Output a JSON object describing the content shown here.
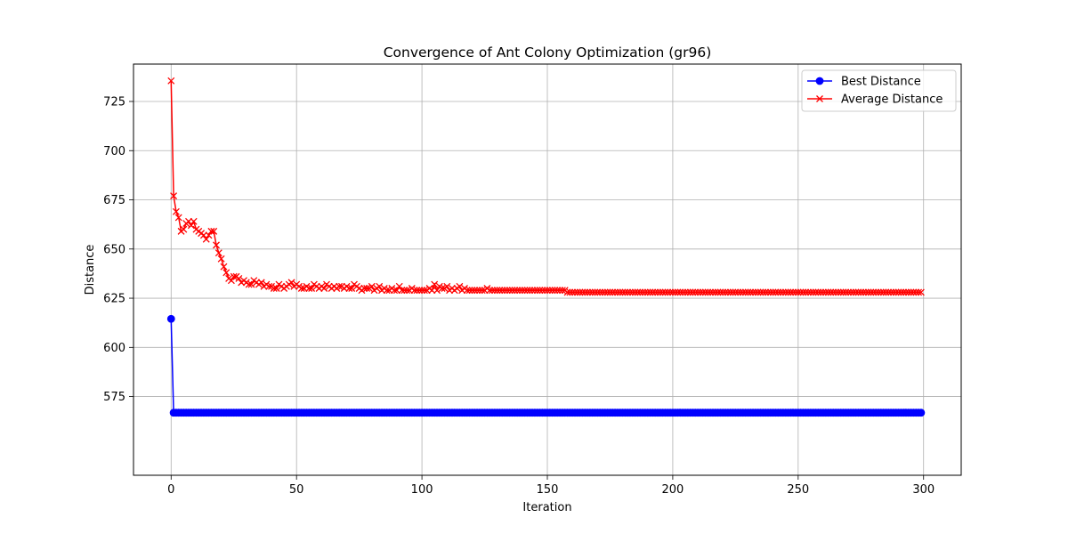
{
  "chart_data": {
    "type": "line",
    "title": "Convergence of Ant Colony Optimization (gr96)",
    "xlabel": "Iteration",
    "ylabel": "Distance",
    "xlim": [
      -15,
      315
    ],
    "ylim": [
      535,
      744
    ],
    "xticks": [
      0,
      50,
      100,
      150,
      200,
      250,
      300
    ],
    "yticks": [
      575,
      600,
      625,
      650,
      675,
      700,
      725
    ],
    "grid": true,
    "legend_position": "top-right",
    "series": [
      {
        "name": "Best Distance",
        "color": "#0000ff",
        "marker": "circle",
        "x_start": 0,
        "x_end": 299,
        "values": [
          614.5,
          566.8
        ],
        "hold_last_value": true
      },
      {
        "name": "Average Distance",
        "color": "#ff0000",
        "marker": "x",
        "x_start": 0,
        "x_end": 299,
        "values": [
          735.5,
          677,
          669,
          666,
          659,
          660,
          663,
          664,
          662,
          664,
          660,
          659,
          658,
          657,
          655,
          657,
          659,
          659,
          652,
          648,
          645,
          641,
          638,
          635,
          634,
          636,
          636,
          635,
          633,
          634,
          633,
          632,
          632,
          634,
          633,
          632,
          633,
          631,
          632,
          631,
          631,
          630,
          630,
          632,
          631,
          630,
          631,
          632,
          633,
          631,
          632,
          631,
          630,
          630,
          631,
          630,
          630,
          632,
          631,
          630,
          631,
          630,
          632,
          631,
          630,
          631,
          630,
          631,
          631,
          630,
          631,
          630,
          630,
          632,
          631,
          630,
          629,
          630,
          630,
          630,
          631,
          629,
          630,
          631,
          629,
          630,
          629,
          629,
          630,
          629,
          629,
          631,
          629,
          629,
          629,
          629,
          630,
          629,
          629,
          629,
          629,
          629,
          629,
          630,
          629,
          632,
          629,
          631,
          630,
          630,
          631,
          629,
          630,
          629,
          630,
          631,
          629,
          630,
          629,
          629,
          629,
          629,
          629,
          629,
          629,
          629,
          630,
          629,
          629,
          629,
          629,
          629,
          629,
          629,
          629,
          629,
          629,
          629,
          629,
          629,
          629,
          629,
          629,
          629,
          629,
          629,
          629,
          629,
          629,
          629,
          629,
          629,
          629,
          629,
          629,
          629,
          629,
          629,
          628
        ],
        "hold_last_value": true
      }
    ]
  }
}
